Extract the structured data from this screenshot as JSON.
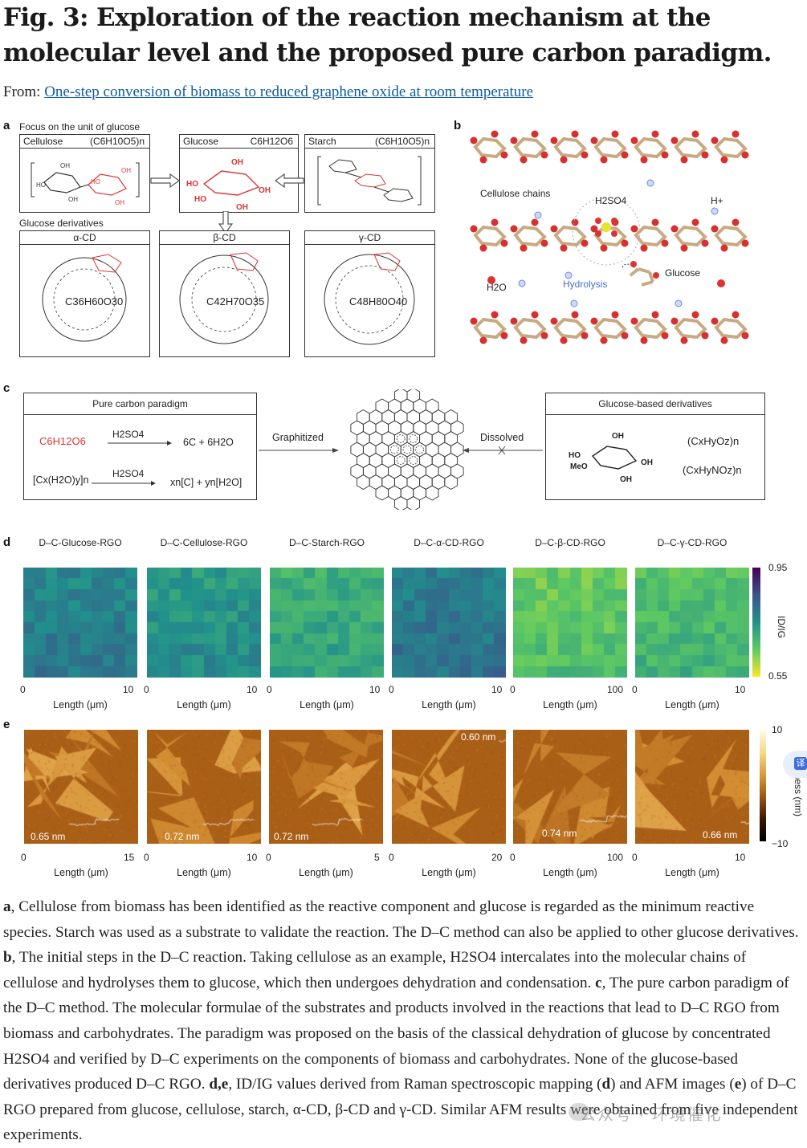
{
  "title": "Fig. 3: Exploration of the reaction mechanism at the molecular level and the proposed pure carbon paradigm.",
  "from_label": "From:",
  "from_link": "One-step conversion of biomass to reduced graphene oxide at room temperature",
  "panel_a": {
    "label": "a",
    "focus_text": "Focus on the unit of glucose",
    "cellulose": {
      "name": "Cellulose",
      "formula": "(C6H10O5)n"
    },
    "glucose": {
      "name": "Glucose",
      "formula": "C6H12O6"
    },
    "starch": {
      "name": "Starch",
      "formula": "(C6H10O5)n"
    },
    "derivatives_text": "Glucose derivatives",
    "alpha_cd": {
      "name": "α-CD",
      "formula": "C36H60O30"
    },
    "beta_cd": {
      "name": "β-CD",
      "formula": "C42H70O35"
    },
    "gamma_cd": {
      "name": "γ-CD",
      "formula": "C48H80O40"
    }
  },
  "panel_b": {
    "label": "b",
    "cellulose_chains": "Cellulose chains",
    "h2so4": "H2SO4",
    "hplus": "H+",
    "glucose": "Glucose",
    "h2o": "H2O",
    "hydrolysis": "Hydrolysis"
  },
  "panel_c": {
    "label": "c",
    "pure_carbon_title": "Pure carbon paradigm",
    "r1_left": "C6H12O6",
    "r1_cond": "H2SO4",
    "r1_right": "6C + 6H2O",
    "r2_left": "[Cx(H2O)y]n",
    "r2_cond": "H2SO4",
    "r2_right": "xn[C] + yn[H2O]",
    "graphitized": "Graphitized",
    "dissolved": "Dissolved",
    "derivatives_title": "Glucose-based derivatives",
    "deriv_f1": "(CxHyOz)n",
    "deriv_f2": "(CxHyNOz)n"
  },
  "panel_d": {
    "label": "d",
    "maps": [
      {
        "title": "D–C-Glucose-RGO",
        "xmax": "10",
        "mean": 0.78
      },
      {
        "title": "D–C-Cellulose-RGO",
        "xmax": "10",
        "mean": 0.75
      },
      {
        "title": "D–C-Starch-RGO",
        "xmax": "10",
        "mean": 0.71
      },
      {
        "title": "D–C-α-CD-RGO",
        "xmax": "10",
        "mean": 0.79
      },
      {
        "title": "D–C-β-CD-RGO",
        "xmax": "100",
        "mean": 0.66
      },
      {
        "title": "D–C-γ-CD-RGO",
        "xmax": "10",
        "mean": 0.68
      }
    ],
    "xmin": "0",
    "xlabel": "Length (μm)",
    "cbar_max": "0.95",
    "cbar_min": "0.55",
    "cbar_label": "ID/IG"
  },
  "panel_e": {
    "label": "e",
    "images": [
      {
        "height_label": "0.65 nm",
        "xmax": "15"
      },
      {
        "height_label": "0.72 nm",
        "xmax": "10"
      },
      {
        "height_label": "0.72 nm",
        "xmax": "5"
      },
      {
        "height_label": "0.60 nm",
        "xmax": "20"
      },
      {
        "height_label": "0.74 nm",
        "xmax": "100"
      },
      {
        "height_label": "0.66 nm",
        "xmax": "10"
      }
    ],
    "xmin": "0",
    "xlabel": "Length (μm)",
    "cbar_max": "10",
    "cbar_min": "−10",
    "cbar_label": "Thickness (nm)"
  },
  "caption": {
    "a_label": "a",
    "a_text": ", Cellulose from biomass has been identified as the reactive component and glucose is regarded as the minimum reactive species. Starch was used as a substrate to validate the reaction. The D–C method can also be applied to other glucose derivatives. ",
    "b_label": "b",
    "b_text": ", The initial steps in the D–C reaction. Taking cellulose as an example, H2SO4 intercalates into the molecular chains of cellulose and hydrolyses them to glucose, which then undergoes dehydration and condensation. ",
    "c_label": "c",
    "c_text": ", The pure carbon paradigm of the D–C method. The molecular formulae of the substrates and products involved in the reactions that lead to D–C RGO from biomass and carbohydrates. The paradigm was proposed on the basis of the classical dehydration of glucose by concentrated H2SO4 and verified by D–C experiments on the components of biomass and carbohydrates. None of the glucose-based derivatives produced D–C RGO. ",
    "de_label": "d,e",
    "de_text1": ", ID/IG values derived from Raman spectroscopic mapping (",
    "d_ref": "d",
    "de_text2": ") and AFM images (",
    "e_ref": "e",
    "de_text3": ") of D–C RGO prepared from glucose, cellulose, starch, α-CD, β-CD and γ-CD. Similar AFM results were obtained from five independent experiments."
  },
  "watermark": "公众号 · 环境催化"
}
